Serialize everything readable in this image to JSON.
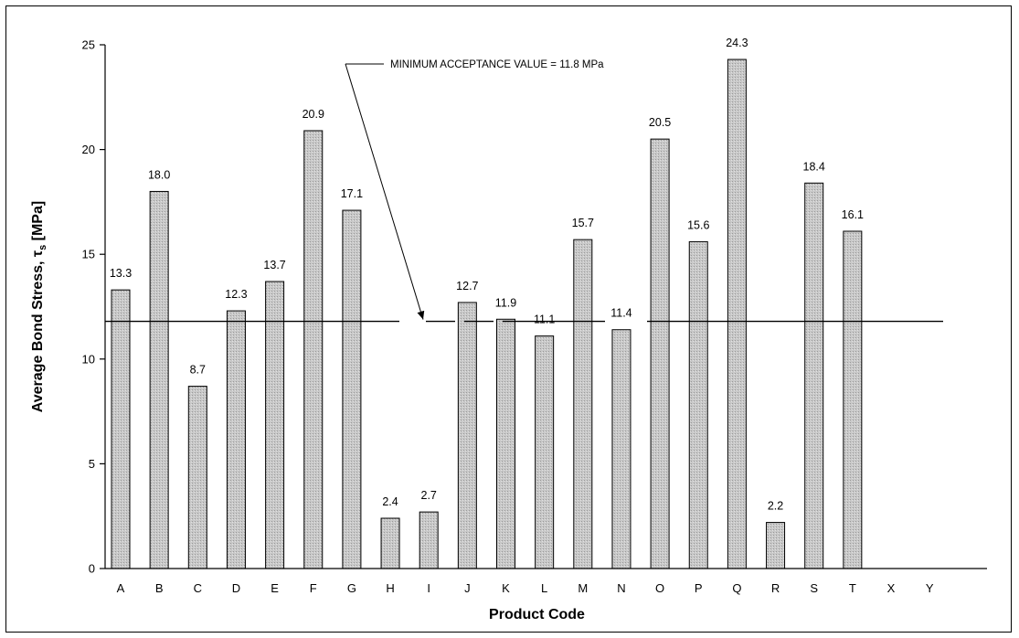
{
  "chart_data": {
    "type": "bar",
    "title": "",
    "xlabel": "Product Code",
    "ylabel_main": "Average Bond Stress, ",
    "ylabel_symbol": "τ",
    "ylabel_sub": "s",
    "ylabel_unit": "  [MPa]",
    "ylim": [
      0,
      25
    ],
    "yticks": [
      0,
      5,
      10,
      15,
      20,
      25
    ],
    "ytick_labels": [
      "0",
      "5",
      "10",
      "15",
      "20",
      "25"
    ],
    "grid": false,
    "legend": "none",
    "categories": [
      "A",
      "B",
      "C",
      "D",
      "E",
      "F",
      "G",
      "H",
      "I",
      "J",
      "K",
      "L",
      "M",
      "N",
      "O",
      "P",
      "Q",
      "R",
      "S",
      "T",
      "X",
      "Y"
    ],
    "values": [
      13.3,
      18.0,
      8.7,
      12.3,
      13.7,
      20.9,
      17.1,
      2.4,
      2.7,
      12.7,
      11.9,
      11.1,
      15.7,
      11.4,
      20.5,
      15.6,
      24.3,
      2.2,
      18.4,
      16.1,
      null,
      null
    ],
    "value_labels": [
      "13.3",
      "18.0",
      "8.7",
      "12.3",
      "13.7",
      "20.9",
      "17.1",
      "2.4",
      "2.7",
      "12.7",
      "11.9",
      "11.1",
      "15.7",
      "11.4",
      "20.5",
      "15.6",
      "24.3",
      "2.2",
      "18.4",
      "16.1",
      "",
      ""
    ],
    "reference_line": {
      "value": 11.8,
      "label": "MINIMUM ACCEPTANCE VALUE = 11.8 MPa"
    },
    "colors": {
      "bar_fill": "#c4c4c4",
      "bar_stroke": "#000000",
      "axis": "#000000"
    }
  }
}
